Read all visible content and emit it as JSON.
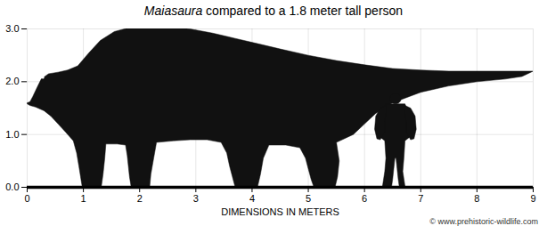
{
  "chart_data": {
    "type": "silhouette",
    "title": "Maiasaura compared to a 1.8 meter tall person",
    "xlabel": "DIMENSIONS IN METERS",
    "caption": "© www.prehistoric-wildlife.com",
    "xlim": [
      0,
      9
    ],
    "ylim": [
      0,
      3
    ],
    "xticks": [
      0,
      1,
      2,
      3,
      4,
      5,
      6,
      7,
      8,
      9
    ],
    "yticks": [
      0,
      1,
      2,
      3
    ],
    "grid": true,
    "color": "#111111",
    "baseline": 0,
    "polygons": [
      [
        [
          0.05,
          1.62
        ],
        [
          0.1,
          1.72
        ],
        [
          0.18,
          1.9
        ],
        [
          0.25,
          2.05
        ],
        [
          0.38,
          2.15
        ],
        [
          0.55,
          2.18
        ],
        [
          0.72,
          2.22
        ],
        [
          0.9,
          2.3
        ],
        [
          1.1,
          2.55
        ],
        [
          1.3,
          2.78
        ],
        [
          1.55,
          2.95
        ],
        [
          1.8,
          3.02
        ],
        [
          2.1,
          3.05
        ],
        [
          2.5,
          3.05
        ],
        [
          2.9,
          3.0
        ],
        [
          3.3,
          2.92
        ],
        [
          3.7,
          2.82
        ],
        [
          4.1,
          2.72
        ],
        [
          4.5,
          2.62
        ],
        [
          5.0,
          2.5
        ],
        [
          5.5,
          2.4
        ],
        [
          6.0,
          2.32
        ],
        [
          6.5,
          2.25
        ],
        [
          7.0,
          2.22
        ],
        [
          7.5,
          2.2
        ],
        [
          8.0,
          2.2
        ],
        [
          8.5,
          2.2
        ],
        [
          9.0,
          2.2
        ],
        [
          9.0,
          2.2
        ],
        [
          8.8,
          2.1
        ],
        [
          8.5,
          2.05
        ],
        [
          8.0,
          2.0
        ],
        [
          7.5,
          1.92
        ],
        [
          7.0,
          1.8
        ],
        [
          6.5,
          1.6
        ],
        [
          6.2,
          1.4
        ],
        [
          6.0,
          1.2
        ],
        [
          6.0,
          1.2
        ],
        [
          5.8,
          1.0
        ],
        [
          5.5,
          0.85
        ],
        [
          5.5,
          0.85
        ],
        [
          5.55,
          0.5
        ],
        [
          5.52,
          0.2
        ],
        [
          5.48,
          0.02
        ],
        [
          5.35,
          0.0
        ],
        [
          5.35,
          0.0
        ],
        [
          5.1,
          0.0
        ],
        [
          5.05,
          0.15
        ],
        [
          5.0,
          0.35
        ],
        [
          5.0,
          0.35
        ],
        [
          4.95,
          0.55
        ],
        [
          4.85,
          0.75
        ],
        [
          4.85,
          0.75
        ],
        [
          4.6,
          0.8
        ],
        [
          4.3,
          0.8
        ],
        [
          4.3,
          0.8
        ],
        [
          4.2,
          0.55
        ],
        [
          4.15,
          0.25
        ],
        [
          4.1,
          0.02
        ],
        [
          3.95,
          0.0
        ],
        [
          3.95,
          0.0
        ],
        [
          3.7,
          0.0
        ],
        [
          3.65,
          0.2
        ],
        [
          3.6,
          0.4
        ],
        [
          3.6,
          0.4
        ],
        [
          3.55,
          0.65
        ],
        [
          3.45,
          0.85
        ],
        [
          3.45,
          0.85
        ],
        [
          3.2,
          0.9
        ],
        [
          2.9,
          0.9
        ],
        [
          2.6,
          0.88
        ],
        [
          2.3,
          0.85
        ],
        [
          2.3,
          0.85
        ],
        [
          2.25,
          0.55
        ],
        [
          2.2,
          0.25
        ],
        [
          2.18,
          0.02
        ],
        [
          2.05,
          0.0
        ],
        [
          2.05,
          0.0
        ],
        [
          1.85,
          0.0
        ],
        [
          1.82,
          0.2
        ],
        [
          1.8,
          0.4
        ],
        [
          1.8,
          0.4
        ],
        [
          1.78,
          0.6
        ],
        [
          1.75,
          0.8
        ],
        [
          1.75,
          0.8
        ],
        [
          1.6,
          0.82
        ],
        [
          1.4,
          0.82
        ],
        [
          1.4,
          0.82
        ],
        [
          1.38,
          0.55
        ],
        [
          1.35,
          0.25
        ],
        [
          1.32,
          0.02
        ],
        [
          1.18,
          0.0
        ],
        [
          1.18,
          0.0
        ],
        [
          0.98,
          0.0
        ],
        [
          0.95,
          0.2
        ],
        [
          0.92,
          0.4
        ],
        [
          0.92,
          0.4
        ],
        [
          0.88,
          0.65
        ],
        [
          0.82,
          0.88
        ],
        [
          0.82,
          0.88
        ],
        [
          0.68,
          1.05
        ],
        [
          0.55,
          1.2
        ],
        [
          0.42,
          1.35
        ],
        [
          0.3,
          1.45
        ],
        [
          0.15,
          1.52
        ],
        [
          0.05,
          1.55
        ],
        [
          0.05,
          1.55
        ],
        [
          0.0,
          1.58
        ],
        [
          0.0,
          1.6
        ],
        [
          0.05,
          1.62
        ]
      ],
      [
        [
          6.38,
          1.58
        ],
        [
          6.72,
          1.58
        ],
        [
          6.78,
          1.4
        ],
        [
          6.82,
          1.2
        ],
        [
          6.8,
          0.95
        ],
        [
          6.72,
          0.88
        ],
        [
          6.7,
          0.55
        ],
        [
          6.68,
          0.3
        ],
        [
          6.72,
          0.02
        ],
        [
          6.8,
          0.0
        ],
        [
          6.72,
          0.0
        ],
        [
          6.62,
          0.0
        ],
        [
          6.6,
          0.15
        ],
        [
          6.58,
          0.35
        ],
        [
          6.56,
          0.55
        ],
        [
          6.54,
          0.55
        ],
        [
          6.52,
          0.35
        ],
        [
          6.5,
          0.15
        ],
        [
          6.48,
          0.0
        ],
        [
          6.38,
          0.0
        ],
        [
          6.3,
          0.0
        ],
        [
          6.32,
          0.02
        ],
        [
          6.36,
          0.3
        ],
        [
          6.38,
          0.55
        ],
        [
          6.36,
          0.88
        ],
        [
          6.28,
          0.95
        ],
        [
          6.26,
          1.2
        ],
        [
          6.28,
          1.4
        ],
        [
          6.38,
          1.58
        ]
      ],
      [
        [
          6.38,
          1.55
        ],
        [
          6.28,
          1.5
        ],
        [
          6.2,
          1.35
        ],
        [
          6.18,
          1.1
        ],
        [
          6.22,
          0.92
        ],
        [
          6.28,
          0.9
        ],
        [
          6.36,
          1.05
        ],
        [
          6.36,
          1.25
        ],
        [
          6.38,
          1.4
        ]
      ],
      [
        [
          6.72,
          1.55
        ],
        [
          6.82,
          1.5
        ],
        [
          6.9,
          1.35
        ],
        [
          6.92,
          1.1
        ],
        [
          6.88,
          0.92
        ],
        [
          6.82,
          0.9
        ],
        [
          6.74,
          1.05
        ],
        [
          6.74,
          1.25
        ],
        [
          6.72,
          1.4
        ]
      ]
    ],
    "circles": [
      {
        "cx": 6.55,
        "cy": 1.68,
        "r": 0.1
      }
    ],
    "points": [
      {
        "x": 0.28,
        "y": 2.08,
        "color": "white"
      }
    ]
  }
}
